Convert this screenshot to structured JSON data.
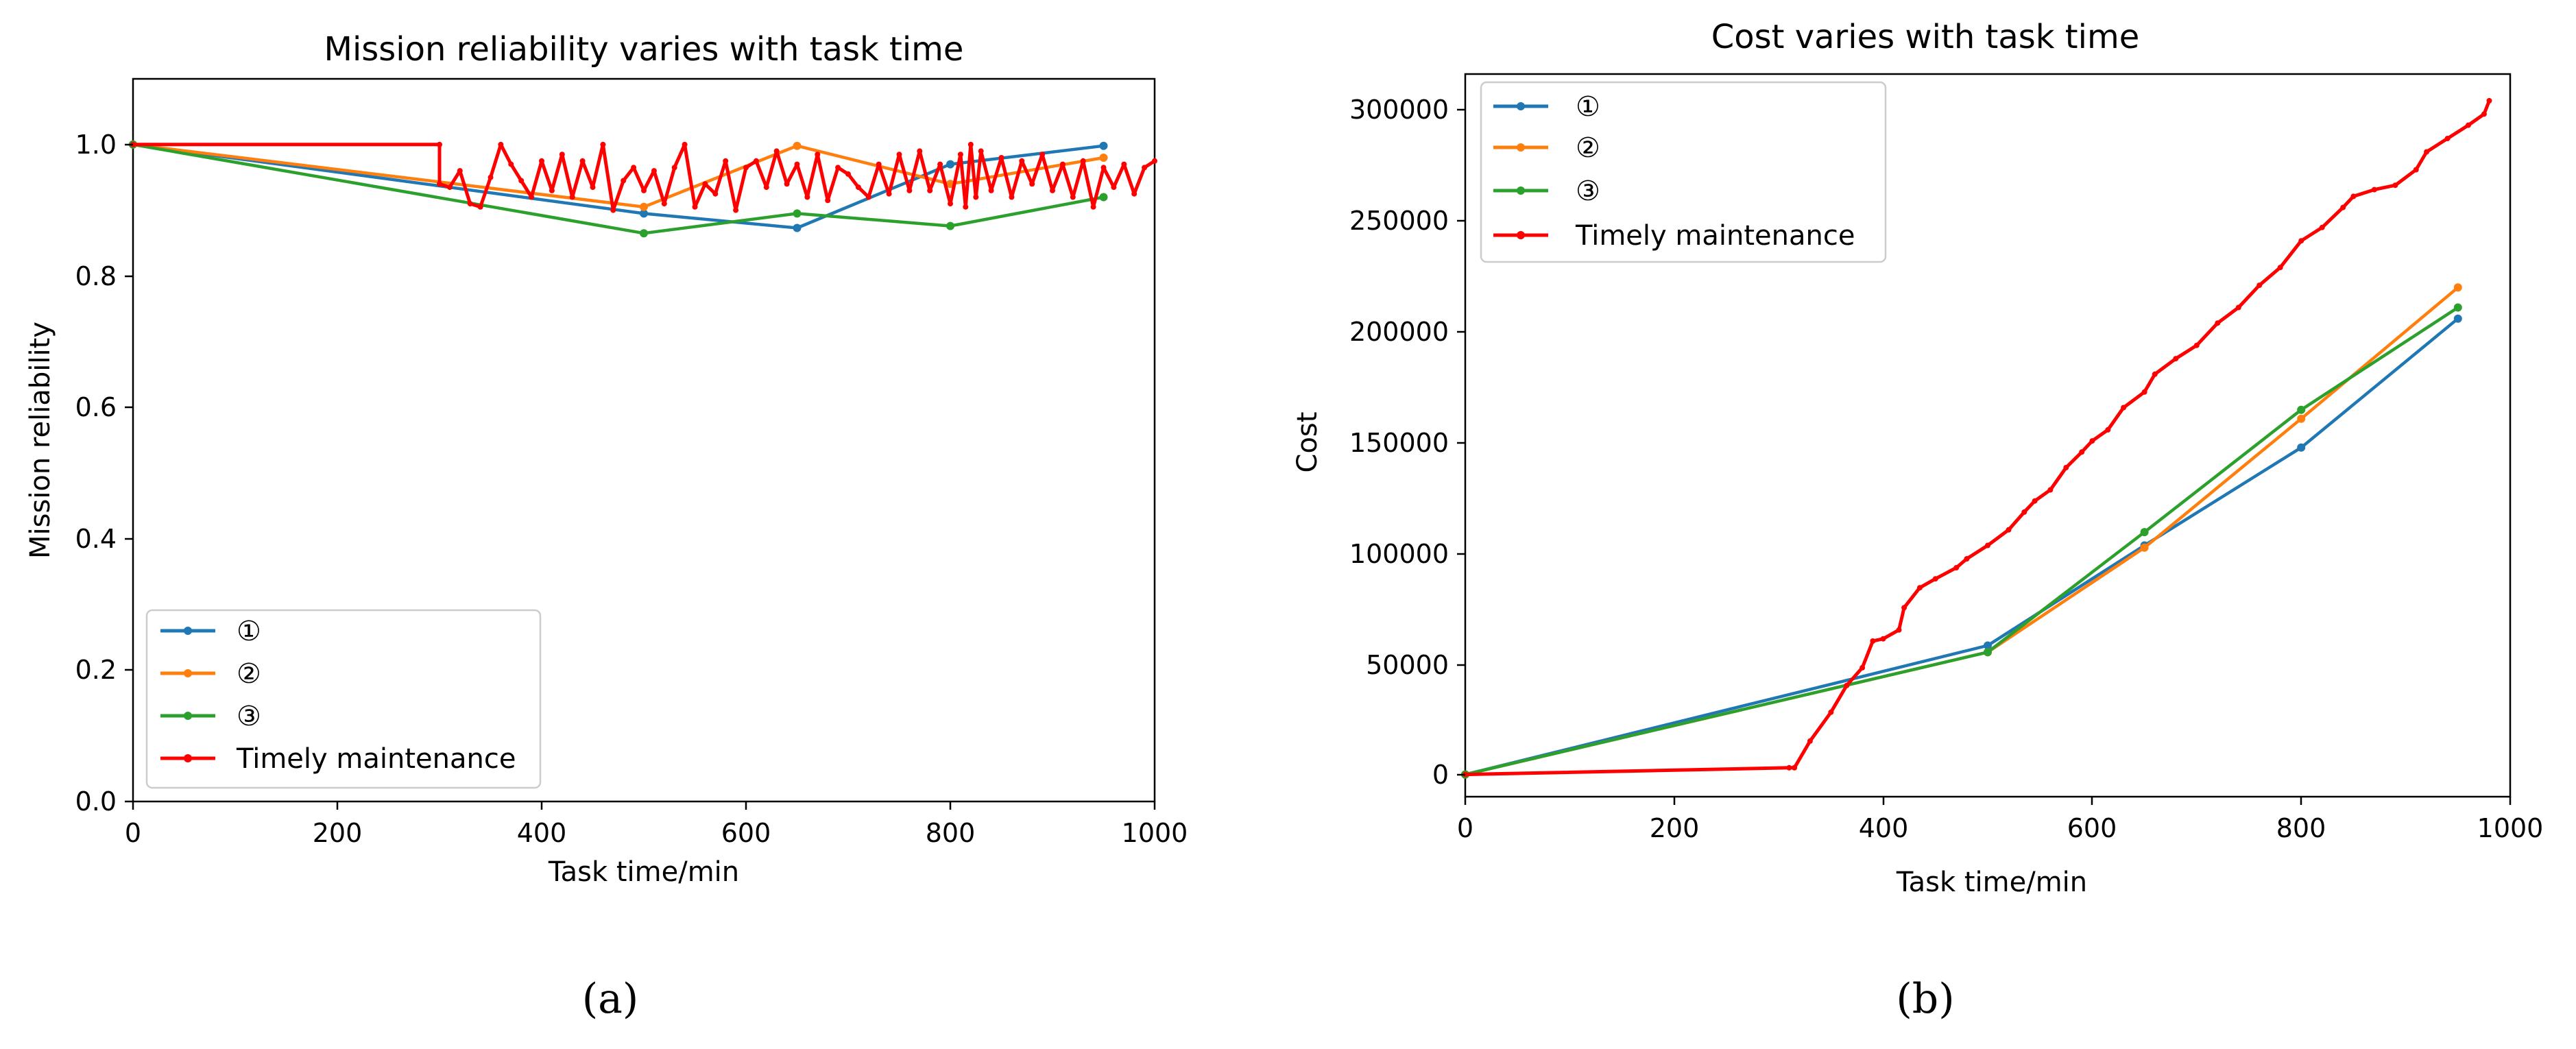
{
  "chart_data": [
    {
      "type": "line",
      "title": "Mission reliability varies with task time",
      "xlabel": "Task time/min",
      "ylabel": "Mission reliability",
      "xlim": [
        0,
        1000
      ],
      "ylim": [
        0,
        1.1
      ],
      "xticks": [
        "0",
        "200",
        "400",
        "600",
        "800",
        "1000"
      ],
      "yticks": [
        "0.0",
        "0.2",
        "0.4",
        "0.6",
        "0.8",
        "1.0"
      ],
      "legend_position": "lower-left",
      "grid": false,
      "caption": "(a)",
      "series": [
        {
          "name": "①",
          "color": "#1f77b4",
          "x": [
            0,
            500,
            650,
            800,
            950
          ],
          "y": [
            1.0,
            0.895,
            0.873,
            0.97,
            0.998
          ]
        },
        {
          "name": "②",
          "color": "#ff7f0e",
          "x": [
            0,
            500,
            650,
            800,
            950
          ],
          "y": [
            1.0,
            0.905,
            0.998,
            0.94,
            0.98
          ]
        },
        {
          "name": "③",
          "color": "#2ca02c",
          "x": [
            0,
            500,
            650,
            800,
            950
          ],
          "y": [
            1.0,
            0.865,
            0.895,
            0.876,
            0.92
          ]
        },
        {
          "name": "Timely maintenance",
          "color": "#ff0000",
          "x": [
            0,
            300,
            300,
            310,
            320,
            330,
            340,
            350,
            360,
            370,
            380,
            390,
            400,
            410,
            420,
            430,
            440,
            450,
            460,
            470,
            480,
            490,
            500,
            510,
            520,
            530,
            540,
            550,
            560,
            570,
            580,
            590,
            600,
            610,
            620,
            630,
            640,
            650,
            660,
            670,
            680,
            690,
            700,
            710,
            720,
            730,
            740,
            750,
            760,
            770,
            780,
            790,
            800,
            810,
            815,
            820,
            825,
            830,
            840,
            850,
            860,
            870,
            880,
            890,
            900,
            910,
            920,
            930,
            940,
            950,
            960,
            970,
            980,
            990,
            1000
          ],
          "y": [
            1.0,
            1.0,
            0.94,
            0.935,
            0.96,
            0.91,
            0.905,
            0.95,
            1.0,
            0.97,
            0.945,
            0.92,
            0.975,
            0.93,
            0.985,
            0.92,
            0.975,
            0.935,
            1.0,
            0.9,
            0.945,
            0.965,
            0.93,
            0.96,
            0.91,
            0.965,
            1.0,
            0.905,
            0.94,
            0.925,
            0.975,
            0.9,
            0.965,
            0.975,
            0.935,
            0.99,
            0.94,
            0.97,
            0.92,
            0.985,
            0.915,
            0.965,
            0.955,
            0.935,
            0.92,
            0.97,
            0.925,
            0.985,
            0.93,
            0.99,
            0.93,
            0.97,
            0.91,
            0.985,
            0.905,
            1.0,
            0.92,
            0.99,
            0.93,
            0.98,
            0.92,
            0.975,
            0.94,
            0.985,
            0.93,
            0.97,
            0.92,
            0.975,
            0.905,
            0.965,
            0.935,
            0.97,
            0.925,
            0.965,
            0.975
          ]
        }
      ]
    },
    {
      "type": "line",
      "title": "Cost varies with task time",
      "xlabel": "Task time/min",
      "ylabel": "Cost",
      "xlim": [
        0,
        1000
      ],
      "ylim": [
        -10000,
        315000
      ],
      "xticks": [
        "0",
        "200",
        "400",
        "600",
        "800",
        "1000"
      ],
      "yticks": [
        "0",
        "50000",
        "100000",
        "150000",
        "200000",
        "250000",
        "300000"
      ],
      "legend_position": "upper-left",
      "grid": false,
      "caption": "(b)",
      "series": [
        {
          "name": "①",
          "color": "#1f77b4",
          "x": [
            0,
            500,
            650,
            800,
            950
          ],
          "y": [
            0,
            58000,
            103000,
            147000,
            205000
          ]
        },
        {
          "name": "②",
          "color": "#ff7f0e",
          "x": [
            0,
            500,
            650,
            800,
            950
          ],
          "y": [
            0,
            55000,
            102000,
            160000,
            219000
          ]
        },
        {
          "name": "③",
          "color": "#2ca02c",
          "x": [
            0,
            500,
            650,
            800,
            950
          ],
          "y": [
            0,
            55000,
            109000,
            164000,
            210000
          ]
        },
        {
          "name": "Timely maintenance",
          "color": "#ff0000",
          "x": [
            0,
            310,
            315,
            330,
            350,
            365,
            380,
            390,
            400,
            415,
            420,
            435,
            450,
            470,
            480,
            500,
            520,
            535,
            545,
            560,
            575,
            590,
            600,
            615,
            630,
            650,
            660,
            680,
            700,
            720,
            740,
            760,
            780,
            800,
            820,
            840,
            850,
            870,
            890,
            910,
            920,
            940,
            960,
            975,
            980
          ],
          "y": [
            0,
            3000,
            3000,
            15000,
            28000,
            40000,
            48000,
            60000,
            61000,
            65000,
            75000,
            84000,
            88000,
            93000,
            97000,
            103000,
            110000,
            118000,
            123000,
            128000,
            138000,
            145000,
            150000,
            155000,
            165000,
            172000,
            180000,
            187000,
            193000,
            203000,
            210000,
            220000,
            228000,
            240000,
            246000,
            255000,
            260000,
            263000,
            265000,
            272000,
            280000,
            286000,
            292000,
            297000,
            303000
          ]
        }
      ]
    }
  ]
}
